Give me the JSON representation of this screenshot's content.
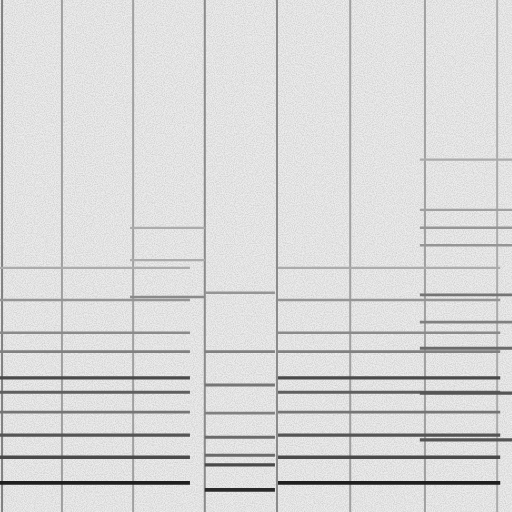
{
  "chart_data": {
    "type": "spectrogram",
    "tick_labels": false,
    "xlim": [
      0,
      100
    ],
    "ylim": [
      0,
      100
    ],
    "zlim": [
      0,
      1
    ],
    "onsets": [
      {
        "time": 0.4,
        "level": 0.5
      },
      {
        "time": 12.1,
        "level": 0.35
      },
      {
        "time": 26.0,
        "level": 0.35
      },
      {
        "time": 40.0,
        "level": 0.45
      },
      {
        "time": 54.1,
        "level": 0.45
      },
      {
        "time": 68.4,
        "level": 0.35
      },
      {
        "time": 83.0,
        "level": 0.35
      },
      {
        "time": 97.1,
        "level": 0.3
      }
    ],
    "partials": [
      {
        "start": 0,
        "end": 37.1,
        "freq": 5.7,
        "level": 0.95
      },
      {
        "start": 0,
        "end": 37.1,
        "freq": 10.7,
        "level": 0.75
      },
      {
        "start": 0,
        "end": 37.1,
        "freq": 15.0,
        "level": 0.7
      },
      {
        "start": 0,
        "end": 37.1,
        "freq": 19.5,
        "level": 0.55
      },
      {
        "start": 0,
        "end": 37.1,
        "freq": 23.4,
        "level": 0.65
      },
      {
        "start": 0,
        "end": 37.1,
        "freq": 26.2,
        "level": 0.75
      },
      {
        "start": 0,
        "end": 37.1,
        "freq": 31.3,
        "level": 0.5
      },
      {
        "start": 0,
        "end": 37.1,
        "freq": 35.0,
        "level": 0.45
      },
      {
        "start": 0,
        "end": 37.1,
        "freq": 41.4,
        "level": 0.4
      },
      {
        "start": 0,
        "end": 37.1,
        "freq": 47.7,
        "level": 0.3
      },
      {
        "start": 25.4,
        "end": 40.0,
        "freq": 42.0,
        "level": 0.45
      },
      {
        "start": 25.4,
        "end": 40.0,
        "freq": 49.2,
        "level": 0.3
      },
      {
        "start": 25.4,
        "end": 40.0,
        "freq": 55.5,
        "level": 0.3
      },
      {
        "start": 40.0,
        "end": 53.7,
        "freq": 4.3,
        "level": 0.9
      },
      {
        "start": 40.0,
        "end": 53.7,
        "freq": 9.2,
        "level": 0.75
      },
      {
        "start": 40.0,
        "end": 53.7,
        "freq": 11.1,
        "level": 0.6
      },
      {
        "start": 40.0,
        "end": 53.7,
        "freq": 14.6,
        "level": 0.6
      },
      {
        "start": 40.0,
        "end": 53.7,
        "freq": 19.3,
        "level": 0.5
      },
      {
        "start": 40.0,
        "end": 53.7,
        "freq": 24.8,
        "level": 0.55
      },
      {
        "start": 40.0,
        "end": 53.7,
        "freq": 31.3,
        "level": 0.5
      },
      {
        "start": 40.0,
        "end": 53.7,
        "freq": 42.8,
        "level": 0.4
      },
      {
        "start": 54.3,
        "end": 97.7,
        "freq": 5.7,
        "level": 0.95
      },
      {
        "start": 54.3,
        "end": 97.7,
        "freq": 10.7,
        "level": 0.75
      },
      {
        "start": 54.3,
        "end": 97.7,
        "freq": 15.0,
        "level": 0.7
      },
      {
        "start": 54.3,
        "end": 97.7,
        "freq": 19.5,
        "level": 0.55
      },
      {
        "start": 54.3,
        "end": 97.7,
        "freq": 23.4,
        "level": 0.65
      },
      {
        "start": 54.3,
        "end": 97.7,
        "freq": 26.2,
        "level": 0.75
      },
      {
        "start": 54.3,
        "end": 97.7,
        "freq": 31.3,
        "level": 0.5
      },
      {
        "start": 54.3,
        "end": 97.7,
        "freq": 35.0,
        "level": 0.45
      },
      {
        "start": 54.3,
        "end": 97.7,
        "freq": 41.4,
        "level": 0.4
      },
      {
        "start": 54.3,
        "end": 97.7,
        "freq": 47.7,
        "level": 0.3
      },
      {
        "start": 82.0,
        "end": 100,
        "freq": 14.1,
        "level": 0.7
      },
      {
        "start": 82.0,
        "end": 100,
        "freq": 23.2,
        "level": 0.7
      },
      {
        "start": 82.0,
        "end": 100,
        "freq": 32.0,
        "level": 0.6
      },
      {
        "start": 82.0,
        "end": 100,
        "freq": 37.1,
        "level": 0.5
      },
      {
        "start": 82.0,
        "end": 100,
        "freq": 42.4,
        "level": 0.55
      },
      {
        "start": 82.0,
        "end": 100,
        "freq": 52.1,
        "level": 0.4
      },
      {
        "start": 82.0,
        "end": 100,
        "freq": 55.5,
        "level": 0.4
      },
      {
        "start": 82.0,
        "end": 100,
        "freq": 59.0,
        "level": 0.35
      },
      {
        "start": 82.0,
        "end": 100,
        "freq": 68.8,
        "level": 0.3
      }
    ]
  }
}
